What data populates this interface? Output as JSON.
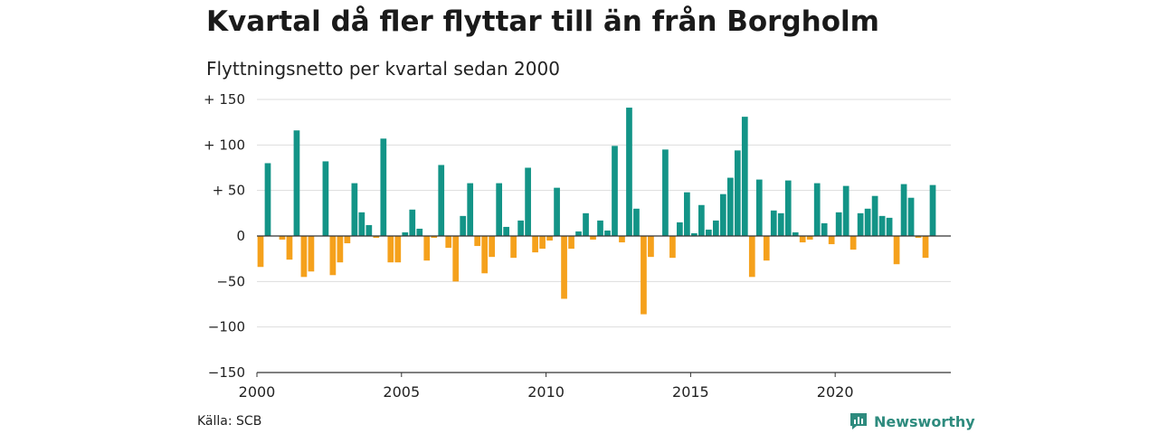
{
  "header": {
    "title": "Kvartal då fler flyttar till än från Borgholm",
    "subtitle": "Flyttningsnetto per kvartal sedan 2000"
  },
  "footer": {
    "source": "Källa: SCB",
    "brand": "Newsworthy",
    "brand_icon": "newsworthy-logo-icon"
  },
  "colors": {
    "positive": "#139487",
    "negative": "#f5a11c",
    "grid": "#dddddd",
    "axis": "#222222",
    "brand": "#2e8b7e"
  },
  "chart_data": {
    "type": "bar",
    "title": "Kvartal då fler flyttar till än från Borgholm",
    "subtitle": "Flyttningsnetto per kvartal sedan 2000",
    "xlabel": "",
    "ylabel": "",
    "ylim": [
      -150,
      150
    ],
    "yticks": [
      150,
      100,
      50,
      0,
      -50,
      -100,
      -150
    ],
    "ytick_labels": [
      "+ 150",
      "+ 100",
      "+  50",
      "0",
      "−50",
      "−100",
      "−150"
    ],
    "xticks": [
      2000,
      2005,
      2010,
      2015,
      2020
    ],
    "xtick_labels": [
      "2000",
      "2005",
      "2010",
      "2015",
      "2020"
    ],
    "grid": true,
    "legend": "none",
    "first_period": "2000 Q1",
    "last_period": "2023 Q4",
    "categories": [
      "2000 Q1",
      "2000 Q2",
      "2000 Q3",
      "2000 Q4",
      "2001 Q1",
      "2001 Q2",
      "2001 Q3",
      "2001 Q4",
      "2002 Q1",
      "2002 Q2",
      "2002 Q3",
      "2002 Q4",
      "2003 Q1",
      "2003 Q2",
      "2003 Q3",
      "2003 Q4",
      "2004 Q1",
      "2004 Q2",
      "2004 Q3",
      "2004 Q4",
      "2005 Q1",
      "2005 Q2",
      "2005 Q3",
      "2005 Q4",
      "2006 Q1",
      "2006 Q2",
      "2006 Q3",
      "2006 Q4",
      "2007 Q1",
      "2007 Q2",
      "2007 Q3",
      "2007 Q4",
      "2008 Q1",
      "2008 Q2",
      "2008 Q3",
      "2008 Q4",
      "2009 Q1",
      "2009 Q2",
      "2009 Q3",
      "2009 Q4",
      "2010 Q1",
      "2010 Q2",
      "2010 Q3",
      "2010 Q4",
      "2011 Q1",
      "2011 Q2",
      "2011 Q3",
      "2011 Q4",
      "2012 Q1",
      "2012 Q2",
      "2012 Q3",
      "2012 Q4",
      "2013 Q1",
      "2013 Q2",
      "2013 Q3",
      "2013 Q4",
      "2014 Q1",
      "2014 Q2",
      "2014 Q3",
      "2014 Q4",
      "2015 Q1",
      "2015 Q2",
      "2015 Q3",
      "2015 Q4",
      "2016 Q1",
      "2016 Q2",
      "2016 Q3",
      "2016 Q4",
      "2017 Q1",
      "2017 Q2",
      "2017 Q3",
      "2017 Q4",
      "2018 Q1",
      "2018 Q2",
      "2018 Q3",
      "2018 Q4",
      "2019 Q1",
      "2019 Q2",
      "2019 Q3",
      "2019 Q4",
      "2020 Q1",
      "2020 Q2",
      "2020 Q3",
      "2020 Q4",
      "2021 Q1",
      "2021 Q2",
      "2021 Q3",
      "2021 Q4",
      "2022 Q1",
      "2022 Q2",
      "2022 Q3",
      "2022 Q4",
      "2023 Q1",
      "2023 Q2",
      "2023 Q3",
      "2023 Q4"
    ],
    "values": [
      -34,
      80,
      0,
      -4,
      -26,
      116,
      -45,
      -39,
      0,
      82,
      -43,
      -29,
      -8,
      58,
      26,
      12,
      -2,
      107,
      -29,
      -29,
      4,
      29,
      8,
      -27,
      -2,
      78,
      -13,
      -50,
      22,
      58,
      -11,
      -41,
      -23,
      58,
      10,
      -24,
      17,
      75,
      -18,
      -14,
      -5,
      53,
      -69,
      -14,
      5,
      25,
      -4,
      17,
      6,
      99,
      -7,
      141,
      30,
      -86,
      -23,
      0,
      95,
      -24,
      15,
      48,
      3,
      34,
      7,
      17,
      46,
      64,
      94,
      131,
      -45,
      62,
      -27,
      28,
      25,
      61,
      4,
      -7,
      -4,
      58,
      14,
      -9,
      26,
      55,
      -15,
      25,
      30,
      44,
      22,
      20,
      -31,
      57,
      42,
      -2,
      -24,
      56,
      0,
      0
    ]
  }
}
